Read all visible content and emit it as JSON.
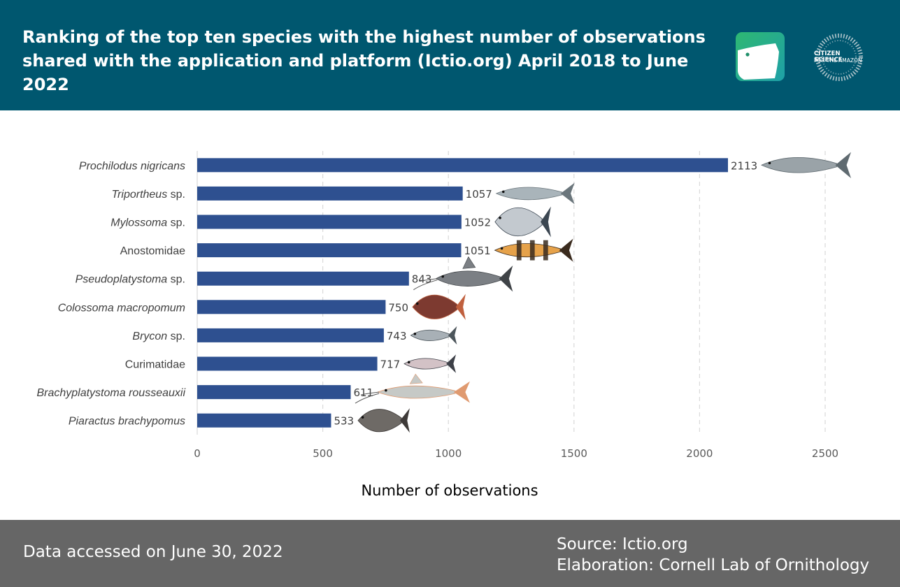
{
  "header": {
    "title": "Ranking of the top ten species with the highest number of observations shared with the application and platform (Ictio.org) April 2018 to June 2022",
    "logos": [
      "ictio-app-icon",
      "citizen-science-for-the-amazon-logo"
    ],
    "partner_logo_text": [
      "CITIZEN SCIENCE",
      "FOR THE AMAZON"
    ],
    "bg_color": "#00576f"
  },
  "chart_data": {
    "type": "bar",
    "orientation": "horizontal",
    "categories": [
      {
        "italic": "Prochilodus nigricans",
        "plain": ""
      },
      {
        "italic": "Triportheus",
        "plain": " sp."
      },
      {
        "italic": "Mylossoma",
        "plain": " sp."
      },
      {
        "italic": "",
        "plain": "Anostomidae"
      },
      {
        "italic": "Pseudoplatystoma",
        "plain": " sp."
      },
      {
        "italic": "Colossoma macropomum",
        "plain": ""
      },
      {
        "italic": "Brycon",
        "plain": " sp."
      },
      {
        "italic": "",
        "plain": "Curimatidae"
      },
      {
        "italic": "Brachyplatystoma rousseauxii",
        "plain": ""
      },
      {
        "italic": "Piaractus brachypomus",
        "plain": ""
      }
    ],
    "values": [
      2113,
      1057,
      1052,
      1051,
      843,
      750,
      743,
      717,
      611,
      533
    ],
    "xlabel": "Number of observations",
    "xlim": [
      0,
      2500
    ],
    "xticks": [
      0,
      500,
      1000,
      1500,
      2000,
      2500
    ],
    "grid": "vertical dashed",
    "bar_color": "#2e5090",
    "fish_illustrations": [
      "fish-silver-long",
      "fish-silver-slender",
      "fish-silver-round",
      "fish-orange-banded",
      "catfish-grey",
      "fish-dark-red",
      "fish-silver-small",
      "fish-silver-pink",
      "catfish-pale",
      "fish-dark-round"
    ]
  },
  "footer": {
    "accessed": "Data accessed on June 30, 2022",
    "source": "Source: Ictio.org",
    "elaboration": "Elaboration: Cornell Lab of Ornithology",
    "bg_color": "#666666"
  }
}
